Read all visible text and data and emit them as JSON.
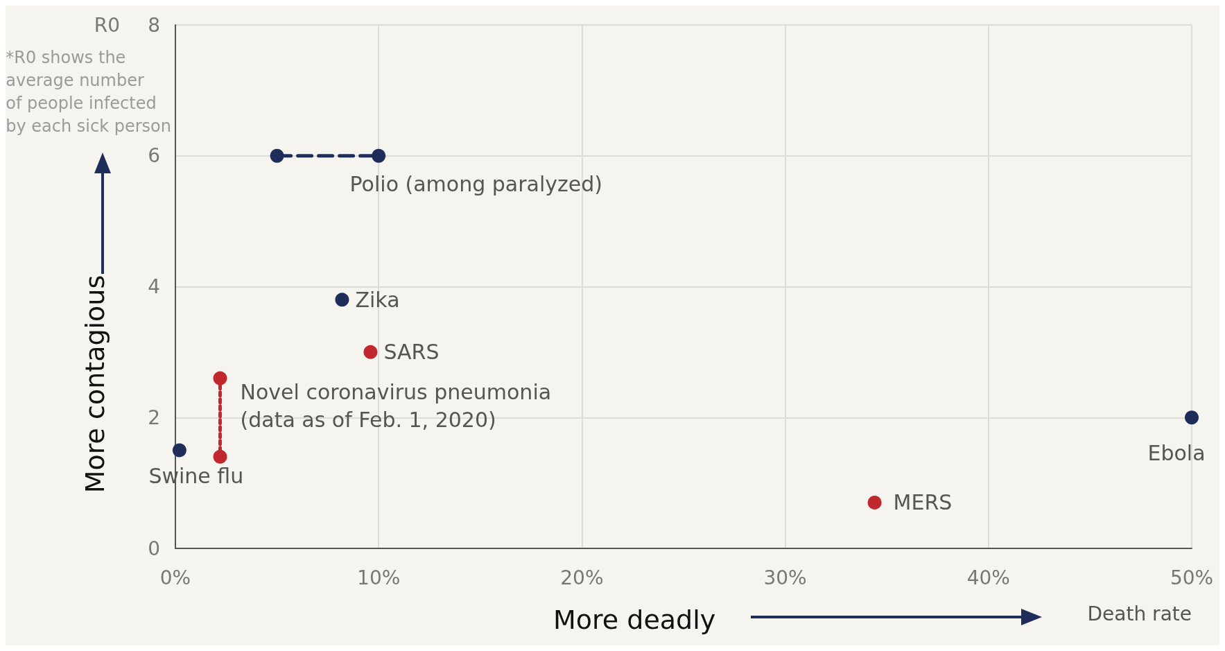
{
  "chart_data": {
    "type": "scatter",
    "xlabel": "Death rate",
    "ylabel": "R0",
    "annotations": [
      "*R0 shows the\naverage number\nof people infected\nby each sick person",
      "More contagious",
      "More deadly"
    ],
    "xlim": [
      0,
      50
    ],
    "ylim": [
      0,
      8
    ],
    "xticks": [
      {
        "value": 0,
        "label": "0%"
      },
      {
        "value": 10,
        "label": "10%"
      },
      {
        "value": 20,
        "label": "20%"
      },
      {
        "value": 30,
        "label": "30%"
      },
      {
        "value": 40,
        "label": "40%"
      },
      {
        "value": 50,
        "label": "50%"
      }
    ],
    "yticks": [
      0,
      2,
      4,
      6,
      8
    ],
    "grid": true,
    "legend": false,
    "marker": "circle",
    "series": [
      {
        "name": "Polio (among paralyzed)",
        "type": "line",
        "line_style": "dashed",
        "color": "#1f2d5a",
        "x": [
          5,
          10
        ],
        "values": [
          6,
          6
        ]
      },
      {
        "name": "Zika",
        "color": "#1f2d5a",
        "x": [
          8.2
        ],
        "values": [
          3.8
        ]
      },
      {
        "name": "SARS",
        "color": "#c0282d",
        "x": [
          9.6
        ],
        "values": [
          3.0
        ]
      },
      {
        "name": "Novel coronavirus pneumonia\n(data as of Feb. 1, 2020)",
        "type": "line",
        "line_style": "dotted",
        "color": "#c0282d",
        "x": [
          2.2,
          2.2
        ],
        "values": [
          2.6,
          1.4
        ]
      },
      {
        "name": "Swine flu",
        "color": "#1f2d5a",
        "x": [
          0.2
        ],
        "values": [
          1.5
        ]
      },
      {
        "name": "Ebola",
        "color": "#1f2d5a",
        "x": [
          50
        ],
        "values": [
          2.0
        ]
      },
      {
        "name": "MERS",
        "color": "#c0282d",
        "x": [
          34.4
        ],
        "values": [
          0.7
        ]
      }
    ]
  }
}
